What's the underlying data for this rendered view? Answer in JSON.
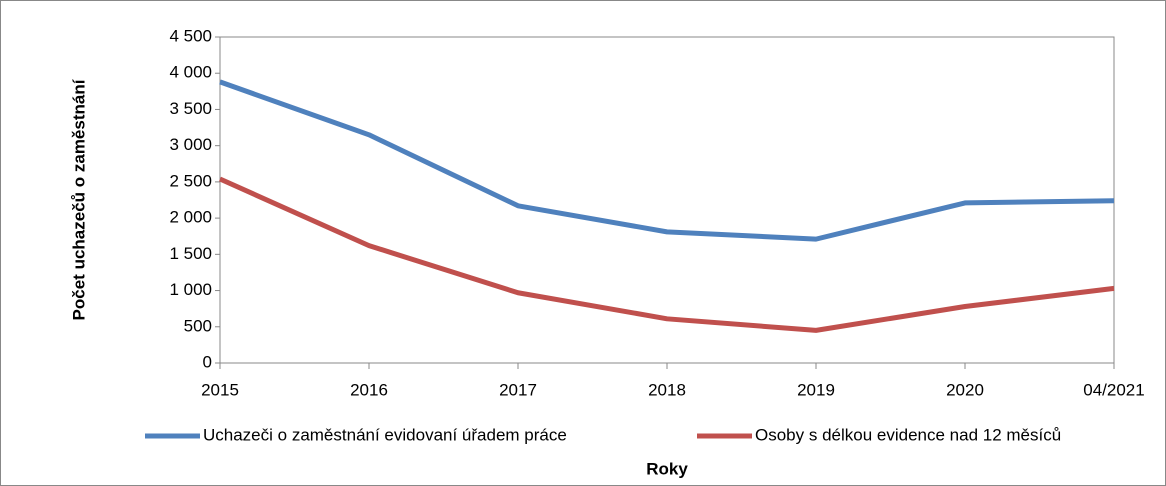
{
  "chart_data": {
    "type": "line",
    "y_label": "Počet uchazečů o zaměstnání",
    "x_label": "Roky",
    "categories": [
      "2015",
      "2016",
      "2017",
      "2018",
      "2019",
      "2020",
      "04/2021"
    ],
    "series": [
      {
        "name": "Uchazeči o zaměstnání evidovaní úřadem práce",
        "color": "#4f81bd",
        "values": [
          3880,
          3150,
          2170,
          1810,
          1710,
          2210,
          2240
        ]
      },
      {
        "name": "Osoby s délkou evidence nad 12 měsíců",
        "color": "#c0504d",
        "values": [
          2540,
          1620,
          970,
          610,
          450,
          780,
          1030
        ]
      }
    ],
    "ylim": [
      0,
      4500
    ],
    "yticks": [
      0,
      500,
      {
        "value": 1000,
        "label": "1 000"
      },
      {
        "value": 1500,
        "label": "1 500"
      },
      {
        "value": 2000,
        "label": "2 000"
      },
      {
        "value": 2500,
        "label": "2 500"
      },
      {
        "value": 3000,
        "label": "3 000"
      },
      {
        "value": 3500,
        "label": "3 500"
      },
      {
        "value": 4000,
        "label": "4 000"
      },
      {
        "value": 4500,
        "label": "4 500"
      }
    ],
    "legend": "bottom",
    "grid": false
  }
}
